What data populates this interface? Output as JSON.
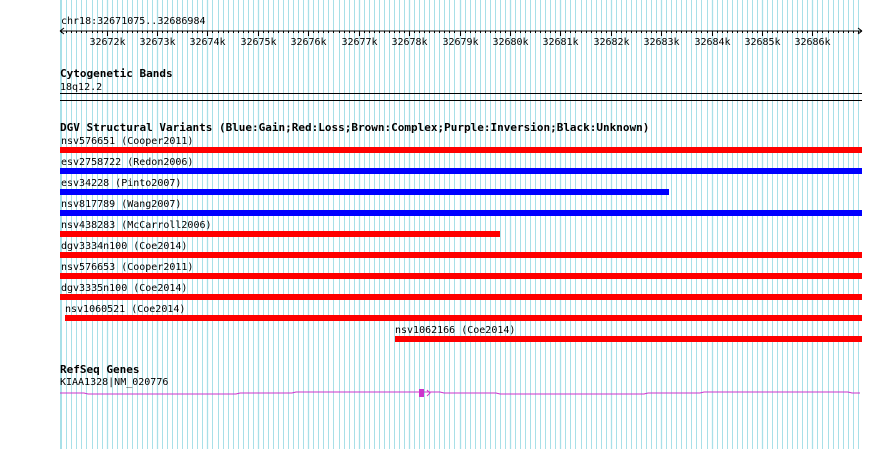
{
  "ruler": {
    "landmark": "chr18:32671075..32686984",
    "start": 32671075,
    "end": 32686984,
    "ticks": [
      {
        "pos": 32672000,
        "label": "32672k"
      },
      {
        "pos": 32673000,
        "label": "32673k"
      },
      {
        "pos": 32674000,
        "label": "32674k"
      },
      {
        "pos": 32675000,
        "label": "32675k"
      },
      {
        "pos": 32676000,
        "label": "32676k"
      },
      {
        "pos": 32677000,
        "label": "32677k"
      },
      {
        "pos": 32678000,
        "label": "32678k"
      },
      {
        "pos": 32679000,
        "label": "32679k"
      },
      {
        "pos": 32680000,
        "label": "32680k"
      },
      {
        "pos": 32681000,
        "label": "32681k"
      },
      {
        "pos": 32682000,
        "label": "32682k"
      },
      {
        "pos": 32683000,
        "label": "32683k"
      },
      {
        "pos": 32684000,
        "label": "32684k"
      },
      {
        "pos": 32685000,
        "label": "32685k"
      },
      {
        "pos": 32686000,
        "label": "32686k"
      }
    ]
  },
  "cyto": {
    "title": "Cytogenetic Bands",
    "band": "18q12.2"
  },
  "dgv": {
    "title": "DGV Structural Variants (Blue:Gain;Red:Loss;Brown:Complex;Purple:Inversion;Black:Unknown)",
    "colors": {
      "gain": "#0000ff",
      "loss": "#ff0000"
    },
    "variants": [
      {
        "label": "nsv576651 (Cooper2011)",
        "type": "loss",
        "start": 32671075,
        "end": 32686984
      },
      {
        "label": "esv2758722 (Redon2006)",
        "type": "gain",
        "start": 32671075,
        "end": 32686984
      },
      {
        "label": "esv34228 (Pinto2007)",
        "type": "gain",
        "start": 32671075,
        "end": 32683150
      },
      {
        "label": "nsv817789 (Wang2007)",
        "type": "gain",
        "start": 32671075,
        "end": 32686984
      },
      {
        "label": "nsv438283 (McCarroll2006)",
        "type": "loss",
        "start": 32671075,
        "end": 32679800
      },
      {
        "label": "dgv3334n100 (Coe2014)",
        "type": "loss",
        "start": 32671075,
        "end": 32686984
      },
      {
        "label": "nsv576653 (Cooper2011)",
        "type": "loss",
        "start": 32671075,
        "end": 32686984
      },
      {
        "label": "dgv3335n100 (Coe2014)",
        "type": "loss",
        "start": 32671075,
        "end": 32686984
      },
      {
        "label": "nsv1060521 (Coe2014)",
        "type": "loss",
        "start": 32671175,
        "end": 32686984
      },
      {
        "label": "nsv1062166 (Coe2014)",
        "type": "loss",
        "start": 32677720,
        "end": 32686984
      }
    ]
  },
  "refseq": {
    "title": "RefSeq Genes",
    "gene": "KIAA1328|NM_020776",
    "color": "#cc33cc",
    "exon_start": 32678190,
    "exon_end": 32678290
  },
  "grid": {
    "color": "#a8e0e8",
    "minor_step_bp": 100
  }
}
